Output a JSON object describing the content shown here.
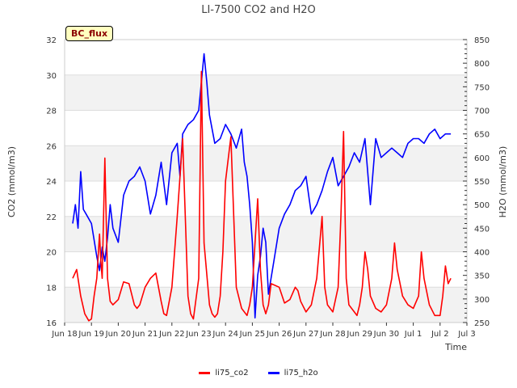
{
  "chart_data": {
    "type": "line",
    "title": "LI-7500 CO2 and H2O",
    "badge": "BC_flux",
    "xlabel": "Time",
    "ylabel_left": "CO2 (mmol/m3)",
    "ylabel_right": "H2O (mmol/m3)",
    "x_ticks": [
      "Jun 18",
      "Jun 19",
      "Jun 20",
      "Jun 21",
      "Jun 22",
      "Jun 23",
      "Jun 24",
      "Jun 25",
      "Jun 26",
      "Jun 27",
      "Jun 28",
      "Jun 29",
      "Jun 30",
      "Jul 1",
      "Jul 2",
      "Jul 3"
    ],
    "x_range_days": [
      0,
      15
    ],
    "ylim_left": [
      16,
      32
    ],
    "yticks_left": [
      16,
      18,
      20,
      22,
      24,
      26,
      28,
      30,
      32
    ],
    "ylim_right": [
      250,
      850
    ],
    "yticks_right": [
      250,
      300,
      350,
      400,
      450,
      500,
      550,
      600,
      650,
      700,
      750,
      800,
      850
    ],
    "grid": true,
    "legend_position": "bottom",
    "colors": {
      "co2": "#ff0000",
      "h2o": "#0000ff"
    },
    "series": [
      {
        "name": "li75_co2",
        "axis": "left",
        "x": [
          0.3,
          0.45,
          0.6,
          0.75,
          0.9,
          1.0,
          1.1,
          1.2,
          1.3,
          1.35,
          1.4,
          1.5,
          1.6,
          1.7,
          1.8,
          2.0,
          2.2,
          2.4,
          2.6,
          2.7,
          2.8,
          3.0,
          3.2,
          3.4,
          3.6,
          3.7,
          3.8,
          4.0,
          4.2,
          4.4,
          4.6,
          4.7,
          4.8,
          5.0,
          5.1,
          5.2,
          5.4,
          5.5,
          5.6,
          5.7,
          5.8,
          5.9,
          6.0,
          6.2,
          6.4,
          6.6,
          6.8,
          6.9,
          7.0,
          7.2,
          7.3,
          7.4,
          7.5,
          7.6,
          7.7,
          8.0,
          8.2,
          8.4,
          8.6,
          8.7,
          8.8,
          9.0,
          9.2,
          9.4,
          9.6,
          9.7,
          9.8,
          10.0,
          10.2,
          10.3,
          10.4,
          10.5,
          10.6,
          10.8,
          10.9,
          11.0,
          11.1,
          11.2,
          11.3,
          11.4,
          11.6,
          11.8,
          12.0,
          12.2,
          12.3,
          12.4,
          12.6,
          12.8,
          13.0,
          13.2,
          13.3,
          13.4,
          13.6,
          13.8,
          14.0,
          14.1,
          14.2,
          14.3,
          14.4
        ],
        "values": [
          18.5,
          19,
          17.5,
          16.5,
          16.1,
          16.2,
          17.5,
          18.5,
          21,
          19.5,
          18.5,
          25.3,
          18.5,
          17.2,
          17,
          17.3,
          18.3,
          18.2,
          17,
          16.8,
          17,
          18,
          18.5,
          18.8,
          17.2,
          16.5,
          16.4,
          18,
          22,
          26.4,
          17.5,
          16.5,
          16.2,
          18.5,
          30.2,
          20.5,
          17,
          16.5,
          16.3,
          16.5,
          17.5,
          20,
          24,
          26.5,
          18,
          16.8,
          16.4,
          17,
          18,
          23,
          19,
          17,
          16.5,
          17,
          18.2,
          18,
          17.1,
          17.3,
          18,
          17.8,
          17.2,
          16.6,
          17,
          18.5,
          22,
          18,
          17,
          16.6,
          18,
          22,
          26.8,
          18.5,
          17,
          16.6,
          16.4,
          17,
          18,
          20,
          19,
          17.5,
          16.8,
          16.6,
          17,
          18.5,
          20.5,
          19,
          17.5,
          17,
          16.8,
          17.5,
          20,
          18.5,
          17,
          16.4,
          16.4,
          17.5,
          19.2,
          18.2,
          18.5
        ]
      },
      {
        "name": "li75_h2o",
        "axis": "right",
        "x": [
          0.3,
          0.4,
          0.5,
          0.6,
          0.7,
          0.8,
          1.0,
          1.2,
          1.3,
          1.4,
          1.5,
          1.6,
          1.7,
          1.8,
          2.0,
          2.2,
          2.4,
          2.6,
          2.8,
          3.0,
          3.2,
          3.4,
          3.6,
          3.8,
          4.0,
          4.2,
          4.3,
          4.4,
          4.6,
          4.8,
          5.0,
          5.2,
          5.3,
          5.4,
          5.6,
          5.8,
          6.0,
          6.2,
          6.4,
          6.6,
          6.7,
          6.8,
          6.9,
          7.0,
          7.1,
          7.2,
          7.3,
          7.4,
          7.5,
          7.6,
          7.8,
          8.0,
          8.2,
          8.4,
          8.6,
          8.8,
          9.0,
          9.2,
          9.4,
          9.6,
          9.8,
          10.0,
          10.2,
          10.4,
          10.6,
          10.8,
          11.0,
          11.2,
          11.4,
          11.6,
          11.8,
          12.0,
          12.2,
          12.4,
          12.6,
          12.8,
          13.0,
          13.2,
          13.4,
          13.6,
          13.8,
          14.0,
          14.2,
          14.4
        ],
        "values": [
          460,
          500,
          450,
          570,
          490,
          480,
          460,
          390,
          360,
          410,
          380,
          430,
          500,
          450,
          420,
          520,
          550,
          560,
          580,
          550,
          480,
          520,
          590,
          500,
          610,
          630,
          560,
          650,
          670,
          680,
          700,
          820,
          760,
          690,
          630,
          640,
          670,
          650,
          620,
          660,
          590,
          560,
          500,
          420,
          260,
          350,
          390,
          450,
          420,
          310,
          380,
          450,
          480,
          500,
          530,
          540,
          560,
          480,
          500,
          530,
          570,
          600,
          540,
          560,
          580,
          610,
          590,
          640,
          500,
          640,
          600,
          610,
          620,
          610,
          600,
          630,
          640,
          640,
          630,
          650,
          660,
          640,
          650,
          650
        ]
      }
    ]
  }
}
